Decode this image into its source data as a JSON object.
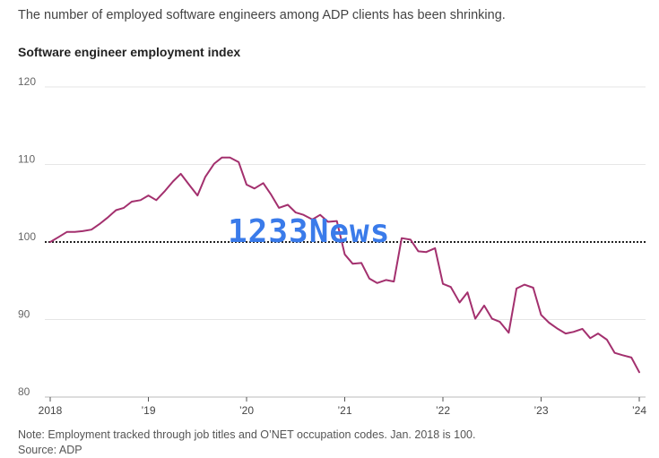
{
  "header": {
    "subtitle": "The number of employed software engineers among ADP clients has been shrinking."
  },
  "footer": {
    "note": "Note: Employment tracked through job titles and O’NET occupation codes. Jan. 2018 is 100.",
    "source": "Source: ADP"
  },
  "watermark": "1233News",
  "colors": {
    "line": "#a3306e",
    "baseline": "#222222",
    "grid": "#e6e6e6",
    "watermark": "#3a7bea"
  },
  "chart_data": {
    "type": "line",
    "title": "Software engineer employment index",
    "xlabel": "",
    "ylabel": "",
    "ylim": [
      80,
      120
    ],
    "xlim": [
      2018.0,
      2024.0
    ],
    "yticks": [
      80,
      90,
      100,
      110,
      120
    ],
    "yticklabels": [
      "80",
      "90",
      "100",
      "110",
      "120"
    ],
    "xticks": [
      2018,
      2019,
      2020,
      2021,
      2022,
      2023,
      2024
    ],
    "xticklabels": [
      "2018",
      "’19",
      "’20",
      "’21",
      "’22",
      "’23",
      "’24"
    ],
    "grid": true,
    "reference_line": 100,
    "series": [
      {
        "x": [
          2018.0,
          2018.08,
          2018.17,
          2018.25,
          2018.33,
          2018.42,
          2018.5,
          2018.58,
          2018.67,
          2018.75,
          2018.83,
          2018.92,
          2019.0,
          2019.08,
          2019.17,
          2019.25,
          2019.33,
          2019.42,
          2019.5,
          2019.58,
          2019.67,
          2019.75,
          2019.83,
          2019.92,
          2020.0,
          2020.08,
          2020.17,
          2020.25,
          2020.33,
          2020.42,
          2020.5,
          2020.58,
          2020.67,
          2020.75,
          2020.83,
          2020.92,
          2021.0,
          2021.08,
          2021.17,
          2021.25,
          2021.33,
          2021.42,
          2021.5,
          2021.58,
          2021.67,
          2021.75,
          2021.83,
          2021.92,
          2022.0,
          2022.08,
          2022.17,
          2022.25,
          2022.33,
          2022.42,
          2022.5,
          2022.58,
          2022.67,
          2022.75,
          2022.83,
          2022.92,
          2023.0,
          2023.08,
          2023.17,
          2023.25,
          2023.33,
          2023.42,
          2023.5,
          2023.58,
          2023.67,
          2023.75,
          2023.83,
          2023.92,
          2024.0
        ],
        "values": [
          100.0,
          100.6,
          101.3,
          101.3,
          101.4,
          101.6,
          102.3,
          103.1,
          104.1,
          104.4,
          105.2,
          105.4,
          106.0,
          105.4,
          106.6,
          107.8,
          108.8,
          107.3,
          106.0,
          108.4,
          110.1,
          110.9,
          110.9,
          110.3,
          107.4,
          106.9,
          107.6,
          106.1,
          104.4,
          104.8,
          103.8,
          103.5,
          102.9,
          103.5,
          102.6,
          102.7,
          98.4,
          97.2,
          97.3,
          95.3,
          94.7,
          95.1,
          94.9,
          100.5,
          100.3,
          98.8,
          98.7,
          99.2,
          94.6,
          94.2,
          92.2,
          93.5,
          90.1,
          91.8,
          90.1,
          89.7,
          88.3,
          94.0,
          94.5,
          94.1,
          90.6,
          89.6,
          88.8,
          88.2,
          88.4,
          88.8,
          87.6,
          88.2,
          87.4,
          85.7,
          85.4,
          85.1,
          83.2
        ]
      }
    ]
  }
}
